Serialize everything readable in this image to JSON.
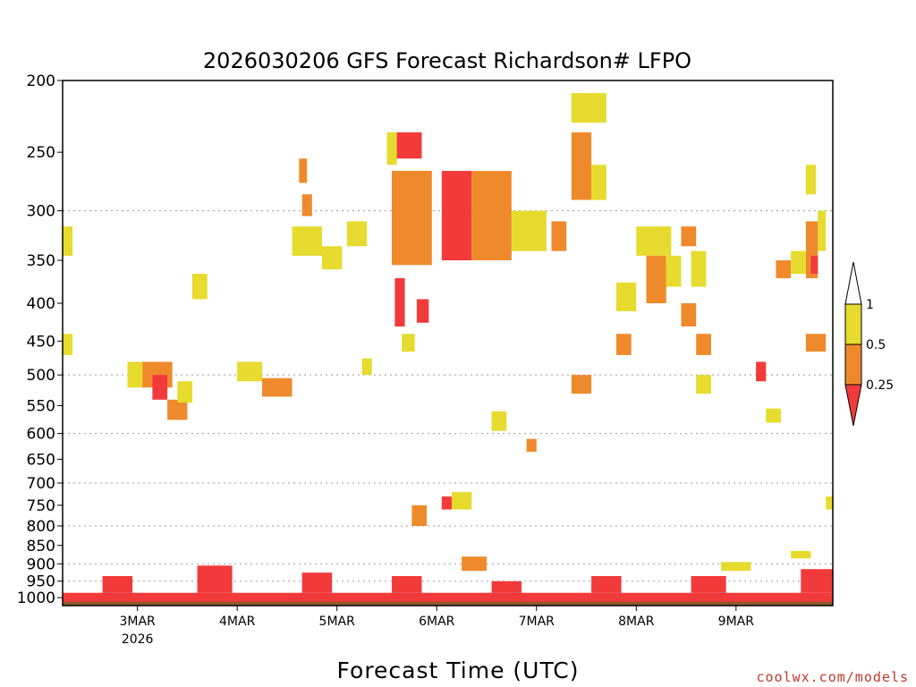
{
  "chart_data": {
    "type": "heatmap",
    "title": "2026030206 GFS Forecast Richardson# LFPO",
    "xlabel": "Forecast Time (UTC)",
    "credit": "coolwx.com/models",
    "y_scale": "log-pressure",
    "y_inverted": true,
    "ylim": [
      1025,
      200
    ],
    "yticks": [
      200,
      250,
      300,
      350,
      400,
      450,
      500,
      550,
      600,
      650,
      700,
      750,
      800,
      850,
      900,
      950,
      1000
    ],
    "ygrid_levels": [
      300,
      500,
      600,
      700,
      800,
      900,
      950,
      1000
    ],
    "xlim": [
      "2026-03-02 06",
      "2026-03-09 24"
    ],
    "xticks": [
      {
        "label": "3MAR",
        "sublabel": "2026",
        "day": 3
      },
      {
        "label": "4MAR",
        "sublabel": "",
        "day": 4
      },
      {
        "label": "5MAR",
        "sublabel": "",
        "day": 5
      },
      {
        "label": "6MAR",
        "sublabel": "",
        "day": 6
      },
      {
        "label": "7MAR",
        "sublabel": "",
        "day": 7
      },
      {
        "label": "8MAR",
        "sublabel": "",
        "day": 8
      },
      {
        "label": "9MAR",
        "sublabel": "",
        "day": 9
      }
    ],
    "grid": "dotted horizontal lines",
    "legend_placement": "right",
    "colorbar": {
      "labels": [
        "1",
        "0.5",
        "0.25"
      ],
      "classes": [
        {
          "range": "> 1",
          "color": "#ffffff"
        },
        {
          "range": "0.5 - 1",
          "color": "#e6db2e"
        },
        {
          "range": "0.25 - 0.5",
          "color": "#ef8a2c"
        },
        {
          "range": "< 0.25",
          "color": "#f23a3a"
        }
      ]
    },
    "ground_color": "#8b5a32",
    "regions": [
      {
        "day_start": 2.25,
        "day_end": 2.35,
        "p_top": 315,
        "p_bottom": 345,
        "class": "0.5-1"
      },
      {
        "day_start": 2.25,
        "day_end": 2.35,
        "p_top": 440,
        "p_bottom": 470,
        "class": "0.5-1"
      },
      {
        "day_start": 2.9,
        "day_end": 3.05,
        "p_top": 480,
        "p_bottom": 520,
        "class": "0.5-1"
      },
      {
        "day_start": 3.05,
        "day_end": 3.35,
        "p_top": 480,
        "p_bottom": 520,
        "class": "0.25-0.5"
      },
      {
        "day_start": 3.15,
        "day_end": 3.3,
        "p_top": 500,
        "p_bottom": 540,
        "class": "<0.25"
      },
      {
        "day_start": 3.3,
        "day_end": 3.5,
        "p_top": 540,
        "p_bottom": 575,
        "class": "0.25-0.5"
      },
      {
        "day_start": 3.4,
        "day_end": 3.55,
        "p_top": 510,
        "p_bottom": 545,
        "class": "0.5-1"
      },
      {
        "day_start": 3.55,
        "day_end": 3.7,
        "p_top": 365,
        "p_bottom": 395,
        "class": "0.5-1"
      },
      {
        "day_start": 4.0,
        "day_end": 4.25,
        "p_top": 480,
        "p_bottom": 510,
        "class": "0.5-1"
      },
      {
        "day_start": 4.25,
        "day_end": 4.55,
        "p_top": 505,
        "p_bottom": 535,
        "class": "0.25-0.5"
      },
      {
        "day_start": 4.55,
        "day_end": 4.85,
        "p_top": 315,
        "p_bottom": 345,
        "class": "0.5-1"
      },
      {
        "day_start": 4.62,
        "day_end": 4.7,
        "p_top": 255,
        "p_bottom": 275,
        "class": "0.25-0.5"
      },
      {
        "day_start": 4.65,
        "day_end": 4.75,
        "p_top": 285,
        "p_bottom": 305,
        "class": "0.25-0.5"
      },
      {
        "day_start": 4.85,
        "day_end": 5.05,
        "p_top": 335,
        "p_bottom": 360,
        "class": "0.5-1"
      },
      {
        "day_start": 5.1,
        "day_end": 5.3,
        "p_top": 310,
        "p_bottom": 335,
        "class": "0.5-1"
      },
      {
        "day_start": 5.25,
        "day_end": 5.35,
        "p_top": 475,
        "p_bottom": 500,
        "class": "0.5-1"
      },
      {
        "day_start": 5.5,
        "day_end": 5.6,
        "p_top": 235,
        "p_bottom": 260,
        "class": "0.5-1"
      },
      {
        "day_start": 5.6,
        "day_end": 5.85,
        "p_top": 235,
        "p_bottom": 255,
        "class": "<0.25"
      },
      {
        "day_start": 5.55,
        "day_end": 5.95,
        "p_top": 265,
        "p_bottom": 355,
        "class": "<0.25"
      },
      {
        "day_start": 5.55,
        "day_end": 5.95,
        "p_top": 265,
        "p_bottom": 355,
        "class": "0.25-0.5"
      },
      {
        "day_start": 5.58,
        "day_end": 5.68,
        "p_top": 370,
        "p_bottom": 430,
        "class": "<0.25"
      },
      {
        "day_start": 5.65,
        "day_end": 5.78,
        "p_top": 440,
        "p_bottom": 465,
        "class": "0.5-1"
      },
      {
        "day_start": 5.8,
        "day_end": 5.92,
        "p_top": 395,
        "p_bottom": 425,
        "class": "<0.25"
      },
      {
        "day_start": 6.05,
        "day_end": 6.35,
        "p_top": 265,
        "p_bottom": 350,
        "class": "<0.25"
      },
      {
        "day_start": 6.35,
        "day_end": 6.75,
        "p_top": 265,
        "p_bottom": 350,
        "class": "0.25-0.5"
      },
      {
        "day_start": 6.55,
        "day_end": 6.7,
        "p_top": 560,
        "p_bottom": 595,
        "class": "0.5-1"
      },
      {
        "day_start": 6.75,
        "day_end": 7.1,
        "p_top": 300,
        "p_bottom": 340,
        "class": "0.5-1"
      },
      {
        "day_start": 7.15,
        "day_end": 7.3,
        "p_top": 310,
        "p_bottom": 340,
        "class": "0.25-0.5"
      },
      {
        "day_start": 6.9,
        "day_end": 7.0,
        "p_top": 610,
        "p_bottom": 635,
        "class": "0.25-0.5"
      },
      {
        "day_start": 7.35,
        "day_end": 7.7,
        "p_top": 208,
        "p_bottom": 228,
        "class": "0.5-1"
      },
      {
        "day_start": 7.35,
        "day_end": 7.55,
        "p_top": 235,
        "p_bottom": 290,
        "class": "0.25-0.5"
      },
      {
        "day_start": 7.55,
        "day_end": 7.7,
        "p_top": 260,
        "p_bottom": 290,
        "class": "0.5-1"
      },
      {
        "day_start": 7.35,
        "day_end": 7.55,
        "p_top": 500,
        "p_bottom": 530,
        "class": "0.25-0.5"
      },
      {
        "day_start": 7.8,
        "day_end": 8.0,
        "p_top": 375,
        "p_bottom": 410,
        "class": "0.5-1"
      },
      {
        "day_start": 7.8,
        "day_end": 7.95,
        "p_top": 440,
        "p_bottom": 470,
        "class": "0.25-0.5"
      },
      {
        "day_start": 8.0,
        "day_end": 8.35,
        "p_top": 315,
        "p_bottom": 345,
        "class": "0.5-1"
      },
      {
        "day_start": 8.1,
        "day_end": 8.3,
        "p_top": 345,
        "p_bottom": 400,
        "class": "0.25-0.5"
      },
      {
        "day_start": 8.3,
        "day_end": 8.45,
        "p_top": 345,
        "p_bottom": 380,
        "class": "0.5-1"
      },
      {
        "day_start": 8.45,
        "day_end": 8.6,
        "p_top": 315,
        "p_bottom": 335,
        "class": "0.25-0.5"
      },
      {
        "day_start": 8.45,
        "day_end": 8.6,
        "p_top": 400,
        "p_bottom": 430,
        "class": "0.25-0.5"
      },
      {
        "day_start": 8.55,
        "day_end": 8.7,
        "p_top": 340,
        "p_bottom": 380,
        "class": "0.5-1"
      },
      {
        "day_start": 8.6,
        "day_end": 8.75,
        "p_top": 440,
        "p_bottom": 470,
        "class": "0.25-0.5"
      },
      {
        "day_start": 8.6,
        "day_end": 8.75,
        "p_top": 500,
        "p_bottom": 530,
        "class": "0.5-1"
      },
      {
        "day_start": 9.2,
        "day_end": 9.3,
        "p_top": 480,
        "p_bottom": 510,
        "class": "<0.25"
      },
      {
        "day_start": 9.4,
        "day_end": 9.55,
        "p_top": 350,
        "p_bottom": 370,
        "class": "0.25-0.5"
      },
      {
        "day_start": 9.55,
        "day_end": 9.75,
        "p_top": 340,
        "p_bottom": 365,
        "class": "0.5-1"
      },
      {
        "day_start": 9.7,
        "day_end": 9.82,
        "p_top": 310,
        "p_bottom": 370,
        "class": "0.25-0.5"
      },
      {
        "day_start": 9.75,
        "day_end": 9.82,
        "p_top": 345,
        "p_bottom": 365,
        "class": "<0.25"
      },
      {
        "day_start": 9.82,
        "day_end": 9.9,
        "p_top": 300,
        "p_bottom": 340,
        "class": "0.5-1"
      },
      {
        "day_start": 9.7,
        "day_end": 9.9,
        "p_top": 440,
        "p_bottom": 465,
        "class": "0.25-0.5"
      },
      {
        "day_start": 9.7,
        "day_end": 9.8,
        "p_top": 260,
        "p_bottom": 285,
        "class": "0.5-1"
      },
      {
        "day_start": 9.3,
        "day_end": 9.45,
        "p_top": 555,
        "p_bottom": 580,
        "class": "0.5-1"
      },
      {
        "day_start": 9.9,
        "day_end": 9.97,
        "p_top": 730,
        "p_bottom": 760,
        "class": "0.5-1"
      },
      {
        "day_start": 5.75,
        "day_end": 5.9,
        "p_top": 750,
        "p_bottom": 800,
        "class": "0.25-0.5"
      },
      {
        "day_start": 6.05,
        "day_end": 6.15,
        "p_top": 730,
        "p_bottom": 760,
        "class": "<0.25"
      },
      {
        "day_start": 6.15,
        "day_end": 6.35,
        "p_top": 720,
        "p_bottom": 760,
        "class": "0.5-1"
      },
      {
        "day_start": 6.25,
        "day_end": 6.5,
        "p_top": 880,
        "p_bottom": 920,
        "class": "0.25-0.5"
      },
      {
        "day_start": 8.85,
        "day_end": 9.15,
        "p_top": 895,
        "p_bottom": 920,
        "class": "0.5-1"
      },
      {
        "day_start": 9.55,
        "day_end": 9.75,
        "p_top": 865,
        "p_bottom": 885,
        "class": "0.5-1"
      },
      {
        "day_start": 2.25,
        "day_end": 9.97,
        "p_top": 985,
        "p_bottom": 1015,
        "class": "<0.25"
      },
      {
        "day_start": 2.65,
        "day_end": 2.95,
        "p_top": 935,
        "p_bottom": 985,
        "class": "<0.25"
      },
      {
        "day_start": 3.6,
        "day_end": 3.95,
        "p_top": 905,
        "p_bottom": 985,
        "class": "<0.25"
      },
      {
        "day_start": 4.65,
        "day_end": 4.95,
        "p_top": 925,
        "p_bottom": 985,
        "class": "<0.25"
      },
      {
        "day_start": 5.55,
        "day_end": 5.85,
        "p_top": 935,
        "p_bottom": 985,
        "class": "<0.25"
      },
      {
        "day_start": 6.55,
        "day_end": 6.85,
        "p_top": 950,
        "p_bottom": 985,
        "class": "<0.25"
      },
      {
        "day_start": 7.55,
        "day_end": 7.85,
        "p_top": 935,
        "p_bottom": 985,
        "class": "<0.25"
      },
      {
        "day_start": 8.55,
        "day_end": 8.9,
        "p_top": 935,
        "p_bottom": 985,
        "class": "<0.25"
      },
      {
        "day_start": 9.65,
        "day_end": 9.97,
        "p_top": 915,
        "p_bottom": 985,
        "class": "<0.25"
      }
    ]
  }
}
